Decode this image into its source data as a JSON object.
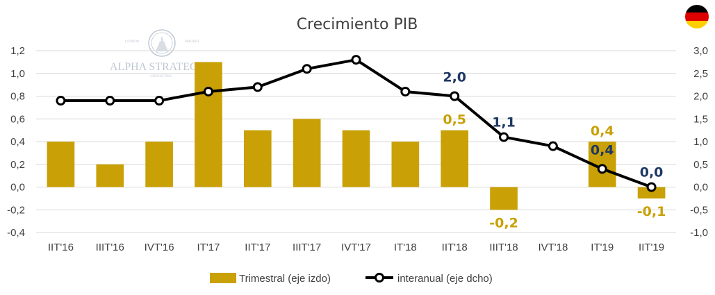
{
  "colors": {
    "bar": "#c9a107",
    "line": "#000000",
    "line_labels": "#1f3864",
    "bar_labels": "#c9a107",
    "grid": "#d9d9d9",
    "text": "#404040"
  },
  "watermark": {
    "name": "ALPHA STRATEGY",
    "tagline": "CONSULTING",
    "small_left": "LONDON",
    "small_right": "MADRID"
  },
  "flag_icon": "germany-flag-icon",
  "chart_data": {
    "type": "bar+line",
    "title": "Crecimiento PIB",
    "categories": [
      "IIT'16",
      "IIIT'16",
      "IVT'16",
      "IT'17",
      "IIT'17",
      "IIIT'17",
      "IVT'17",
      "IT'18",
      "IIT'18",
      "IIIT'18",
      "IVT'18",
      "IT'19",
      "IIT'19"
    ],
    "y_left": {
      "min": -0.4,
      "max": 1.2,
      "ticks": [
        "-0,4",
        "-0,2",
        "0,0",
        "0,2",
        "0,4",
        "0,6",
        "0,8",
        "1,0",
        "1,2"
      ]
    },
    "y_right": {
      "min": -1.0,
      "max": 3.0,
      "ticks": [
        "-1,0",
        "-0,5",
        "0,0",
        "0,5",
        "1,0",
        "1,5",
        "2,0",
        "2,5",
        "3,0"
      ]
    },
    "grid": true,
    "legend_position": "bottom",
    "series": [
      {
        "name": "Trimestral (eje izdo)",
        "kind": "bar",
        "axis": "left",
        "values": [
          0.4,
          0.2,
          0.4,
          1.1,
          0.5,
          0.6,
          0.5,
          0.4,
          0.5,
          -0.2,
          0.0,
          0.4,
          -0.1
        ],
        "labels": [
          "",
          "",
          "",
          "",
          "",
          "",
          "",
          "",
          "0,5",
          "-0,2",
          "",
          "0,4",
          "-0,1"
        ]
      },
      {
        "name": "interanual (eje dcho)",
        "kind": "line",
        "axis": "right",
        "values": [
          1.9,
          1.9,
          1.9,
          2.1,
          2.2,
          2.6,
          2.8,
          2.1,
          2.0,
          1.1,
          0.9,
          0.4,
          0.0
        ],
        "labels": [
          "",
          "",
          "",
          "",
          "",
          "",
          "",
          "",
          "2,0",
          "1,1",
          "",
          "0,4",
          "0,0"
        ]
      }
    ]
  }
}
